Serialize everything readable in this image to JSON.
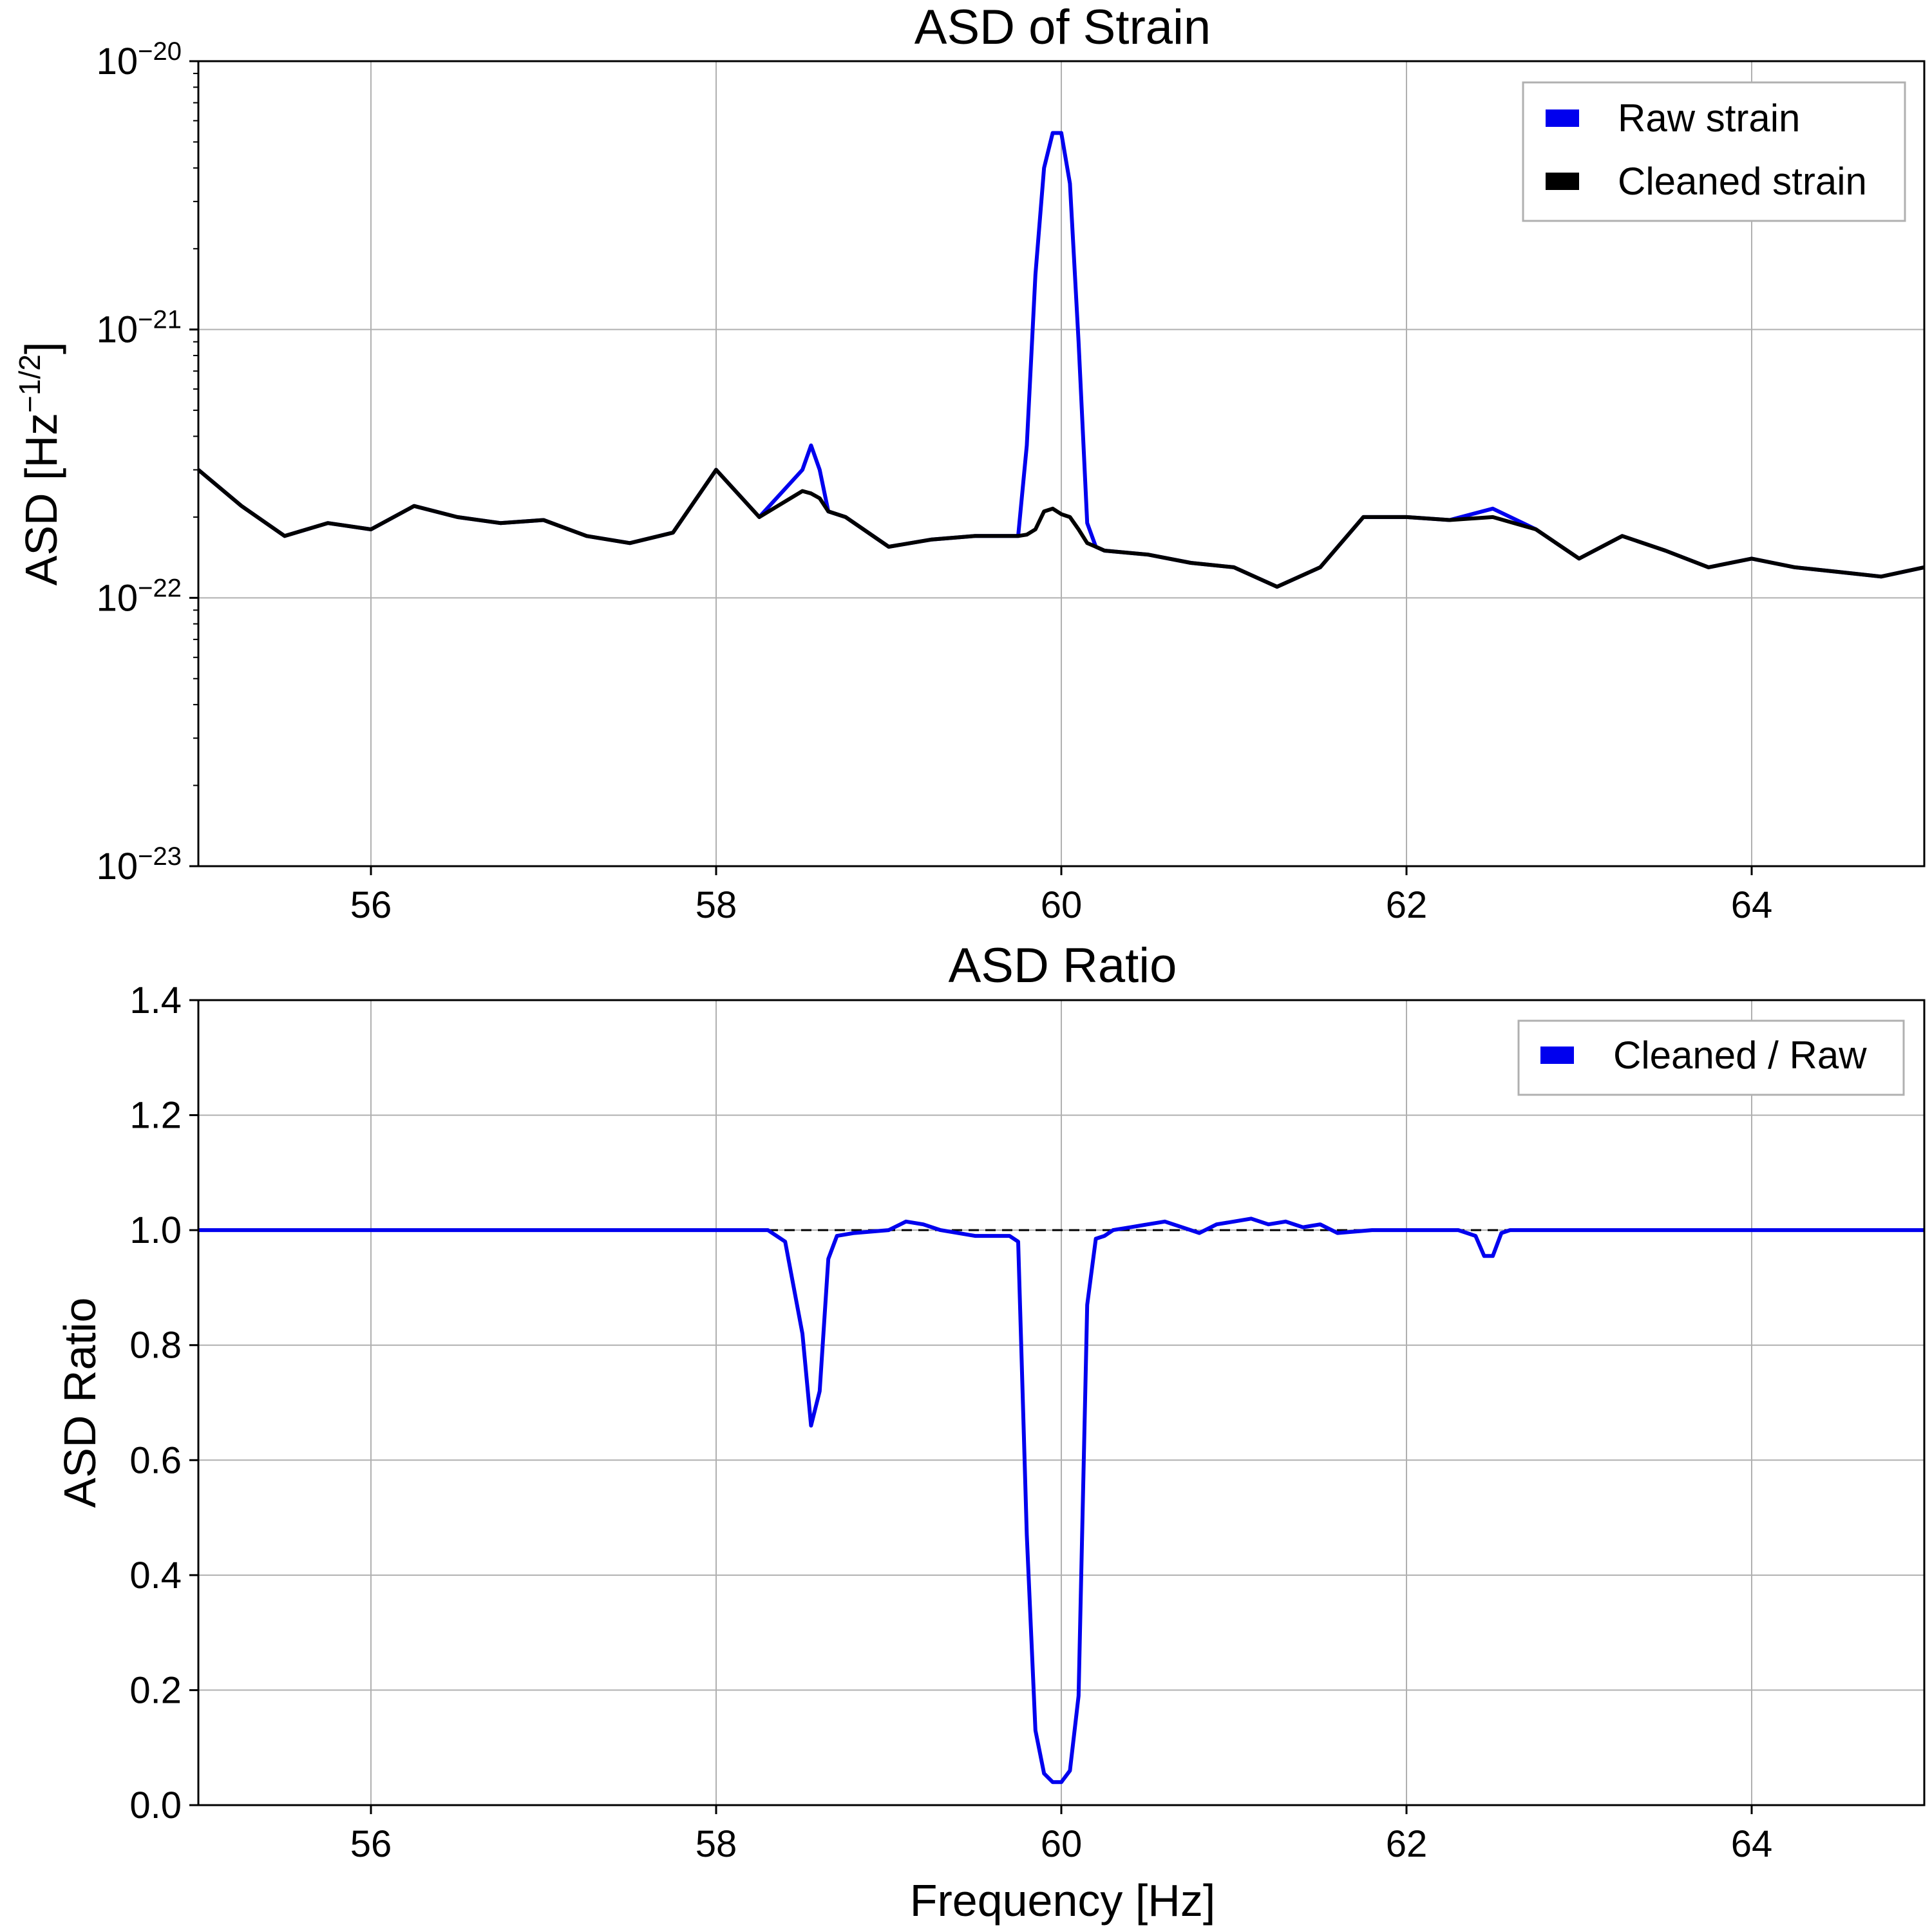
{
  "charts": {
    "top": {
      "title": "ASD of Strain",
      "ylabel": "ASD [Hz",
      "ylabel_sup": "−1/2",
      "ylabel_end": "]",
      "xticks": [
        "56",
        "58",
        "60",
        "62",
        "64"
      ],
      "yticks": [
        {
          "base": "10",
          "exp": "−20"
        },
        {
          "base": "10",
          "exp": "−21"
        },
        {
          "base": "10",
          "exp": "−22"
        },
        {
          "base": "10",
          "exp": "−23"
        }
      ],
      "legend": [
        "Raw strain",
        "Cleaned strain"
      ]
    },
    "bottom": {
      "title": "ASD Ratio",
      "ylabel": "ASD Ratio",
      "xlabel": "Frequency [Hz]",
      "xticks": [
        "56",
        "58",
        "60",
        "62",
        "64"
      ],
      "yticks": [
        "0.0",
        "0.2",
        "0.4",
        "0.6",
        "0.8",
        "1.0",
        "1.2",
        "1.4"
      ],
      "legend": [
        "Cleaned / Raw"
      ]
    }
  },
  "colors": {
    "raw": "#0000ee",
    "cleaned": "#000000",
    "ratio": "#0000ee",
    "grid": "#b0b0b0",
    "reference": "#000000"
  },
  "chart_data": [
    {
      "type": "line",
      "title": "ASD of Strain",
      "xlabel": "",
      "ylabel": "ASD [Hz^-1/2]",
      "xlim": [
        55,
        65
      ],
      "ylim": [
        1e-23,
        1e-20
      ],
      "yscale": "log",
      "grid": true,
      "legend_position": "top-right",
      "x": [
        55.0,
        55.25,
        55.5,
        55.75,
        56.0,
        56.25,
        56.5,
        56.75,
        57.0,
        57.25,
        57.5,
        57.75,
        58.0,
        58.25,
        58.5,
        58.55,
        58.6,
        58.65,
        58.75,
        59.0,
        59.25,
        59.5,
        59.75,
        59.8,
        59.85,
        59.9,
        59.95,
        60.0,
        60.05,
        60.1,
        60.15,
        60.2,
        60.25,
        60.5,
        60.75,
        61.0,
        61.25,
        61.5,
        61.75,
        62.0,
        62.25,
        62.5,
        62.75,
        63.0,
        63.25,
        63.5,
        63.75,
        64.0,
        64.25,
        64.5,
        64.75,
        65.0
      ],
      "series": [
        {
          "name": "Raw strain",
          "values": [
            3e-22,
            2.2e-22,
            1.7e-22,
            1.9e-22,
            1.8e-22,
            2.2e-22,
            2e-22,
            1.9e-22,
            1.95e-22,
            1.7e-22,
            1.6e-22,
            1.75e-22,
            3e-22,
            2e-22,
            3e-22,
            3.7e-22,
            3e-22,
            2.1e-22,
            2e-22,
            1.55e-22,
            1.65e-22,
            1.7e-22,
            1.7e-22,
            3.7e-22,
            1.6e-21,
            4e-21,
            5.4e-21,
            5.4e-21,
            3.5e-21,
            9e-22,
            1.9e-22,
            1.55e-22,
            1.5e-22,
            1.45e-22,
            1.35e-22,
            1.3e-22,
            1.1e-22,
            1.3e-22,
            2e-22,
            2e-22,
            1.95e-22,
            2.15e-22,
            1.8e-22,
            1.4e-22,
            1.7e-22,
            1.5e-22,
            1.3e-22,
            1.4e-22,
            1.3e-22,
            1.25e-22,
            1.2e-22,
            1.3e-22
          ]
        },
        {
          "name": "Cleaned strain",
          "values": [
            3e-22,
            2.2e-22,
            1.7e-22,
            1.9e-22,
            1.8e-22,
            2.2e-22,
            2e-22,
            1.9e-22,
            1.95e-22,
            1.7e-22,
            1.6e-22,
            1.75e-22,
            3e-22,
            2e-22,
            2.5e-22,
            2.45e-22,
            2.35e-22,
            2.1e-22,
            2e-22,
            1.55e-22,
            1.65e-22,
            1.7e-22,
            1.7e-22,
            1.72e-22,
            1.8e-22,
            2.1e-22,
            2.15e-22,
            2.05e-22,
            2e-22,
            1.8e-22,
            1.6e-22,
            1.55e-22,
            1.5e-22,
            1.45e-22,
            1.35e-22,
            1.3e-22,
            1.1e-22,
            1.3e-22,
            2e-22,
            2e-22,
            1.95e-22,
            2e-22,
            1.8e-22,
            1.4e-22,
            1.7e-22,
            1.5e-22,
            1.3e-22,
            1.4e-22,
            1.3e-22,
            1.25e-22,
            1.2e-22,
            1.3e-22
          ]
        }
      ]
    },
    {
      "type": "line",
      "title": "ASD Ratio",
      "xlabel": "Frequency [Hz]",
      "ylabel": "ASD Ratio",
      "xlim": [
        55,
        65
      ],
      "ylim": [
        0.0,
        1.4
      ],
      "grid": true,
      "legend_position": "top-right",
      "x": [
        55.0,
        58.3,
        58.4,
        58.45,
        58.5,
        58.55,
        58.6,
        58.65,
        58.7,
        58.8,
        59.0,
        59.1,
        59.2,
        59.3,
        59.5,
        59.7,
        59.75,
        59.8,
        59.85,
        59.9,
        59.95,
        60.0,
        60.05,
        60.1,
        60.15,
        60.2,
        60.25,
        60.3,
        60.4,
        60.5,
        60.6,
        60.7,
        60.8,
        60.9,
        61.0,
        61.1,
        61.2,
        61.3,
        61.4,
        61.5,
        61.6,
        61.8,
        62.0,
        62.3,
        62.4,
        62.45,
        62.5,
        62.55,
        62.6,
        62.7,
        63.0,
        65.0
      ],
      "series": [
        {
          "name": "Cleaned / Raw",
          "values": [
            1.0,
            1.0,
            0.98,
            0.9,
            0.82,
            0.66,
            0.72,
            0.95,
            0.99,
            0.995,
            1.0,
            1.015,
            1.01,
            1.0,
            0.99,
            0.99,
            0.98,
            0.47,
            0.13,
            0.055,
            0.04,
            0.04,
            0.06,
            0.19,
            0.87,
            0.985,
            0.99,
            1.0,
            1.005,
            1.01,
            1.015,
            1.005,
            0.995,
            1.01,
            1.015,
            1.02,
            1.01,
            1.015,
            1.005,
            1.01,
            0.995,
            1.0,
            1.0,
            1.0,
            0.99,
            0.955,
            0.955,
            0.995,
            1.0,
            1.0,
            1.0,
            1.0
          ]
        }
      ],
      "reference_line": 1.0
    }
  ]
}
